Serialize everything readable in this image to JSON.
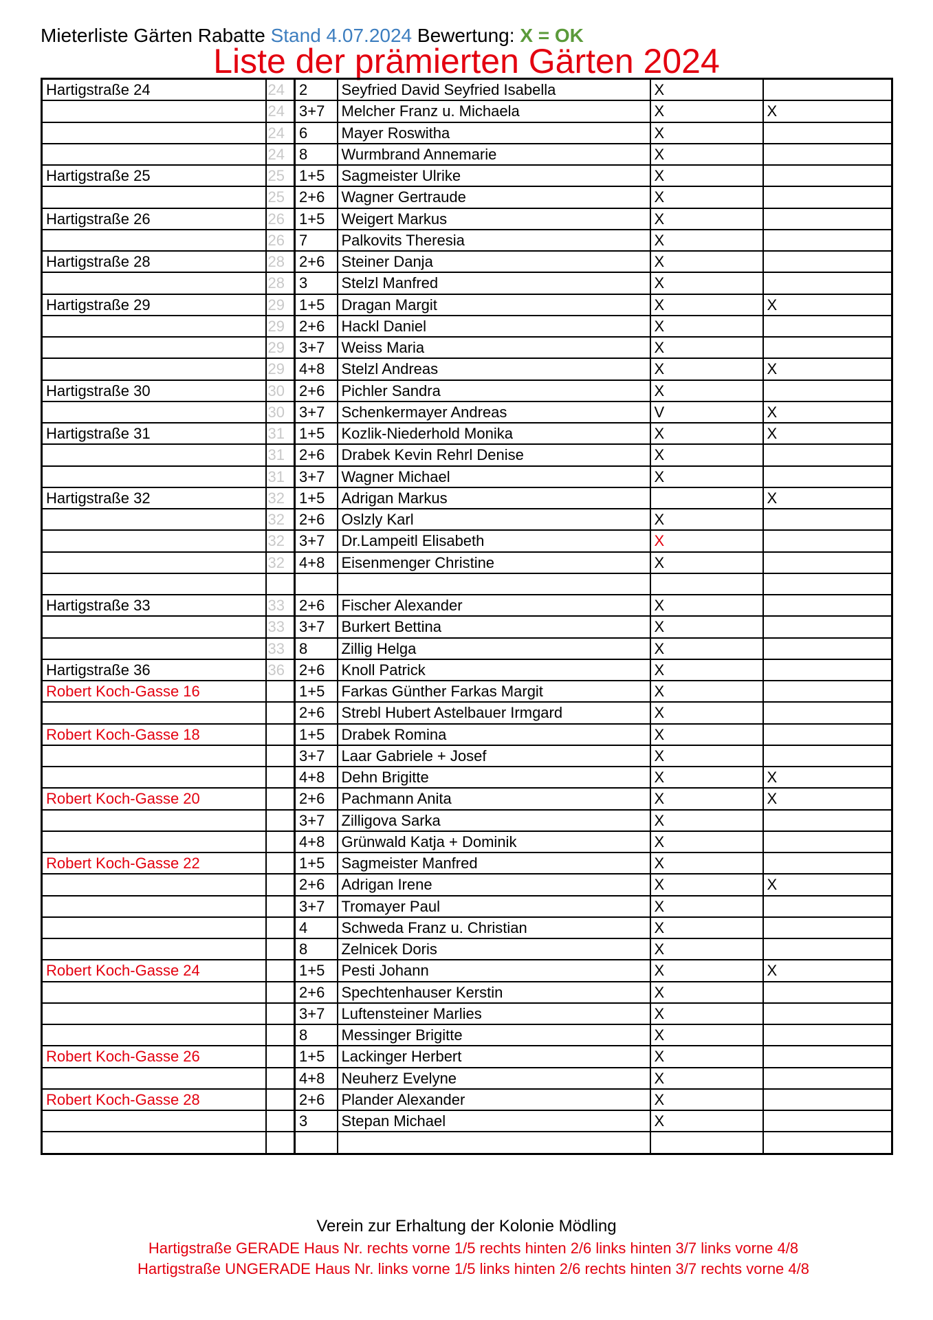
{
  "header": {
    "prefix": "Mieterliste Gärten Rabatte",
    "stand": "Stand 4.07.2024",
    "bewertung": "Bewertung:",
    "legend": "X = OK"
  },
  "title": "Liste der prämierten Gärten 2024",
  "colors": {
    "red": "#e3000f",
    "blue": "#3d7ebf",
    "green": "#5b9a3a",
    "grey": "#c8c8c8"
  },
  "rows": [
    {
      "street": "Hartigstraße 24",
      "num": "24",
      "unit": "2",
      "name": "Seyfried David Seyfried Isabella",
      "c1": "X",
      "c2": ""
    },
    {
      "street": "",
      "num": "24",
      "unit": "3+7",
      "name": "Melcher Franz u. Michaela",
      "c1": "X",
      "c2": "X"
    },
    {
      "street": "",
      "num": "24",
      "unit": "6",
      "name": "Mayer Roswitha",
      "c1": "X",
      "c2": ""
    },
    {
      "street": "",
      "num": "24",
      "unit": "8",
      "name": "Wurmbrand Annemarie",
      "c1": "X",
      "c2": ""
    },
    {
      "street": "Hartigstraße 25",
      "num": "25",
      "unit": "1+5",
      "name": "Sagmeister Ulrike",
      "c1": "X",
      "c2": ""
    },
    {
      "street": "",
      "num": "25",
      "unit": "2+6",
      "name": "Wagner Gertraude",
      "c1": "X",
      "c2": ""
    },
    {
      "street": "Hartigstraße 26",
      "num": "26",
      "unit": "1+5",
      "name": "Weigert Markus",
      "c1": "X",
      "c2": ""
    },
    {
      "street": "",
      "num": "26",
      "unit": "7",
      "name": "Palkovits Theresia",
      "c1": "X",
      "c2": ""
    },
    {
      "street": "Hartigstraße 28",
      "num": "28",
      "unit": "2+6",
      "name": "Steiner Danja",
      "c1": "X",
      "c2": ""
    },
    {
      "street": "",
      "num": "28",
      "unit": "3",
      "name": "Stelzl Manfred",
      "c1": "X",
      "c2": ""
    },
    {
      "street": "Hartigstraße 29",
      "num": "29",
      "unit": "1+5",
      "name": "Dragan Margit",
      "c1": "X",
      "c2": "X"
    },
    {
      "street": "",
      "num": "29",
      "unit": "2+6",
      "name": "Hackl Daniel",
      "c1": "X",
      "c2": ""
    },
    {
      "street": "",
      "num": "29",
      "unit": "3+7",
      "name": "Weiss Maria",
      "c1": "X",
      "c2": ""
    },
    {
      "street": "",
      "num": "29",
      "unit": "4+8",
      "name": "Stelzl Andreas",
      "c1": "X",
      "c2": "X"
    },
    {
      "street": "Hartigstraße 30",
      "num": "30",
      "unit": "2+6",
      "name": "Pichler Sandra",
      "c1": "X",
      "c2": ""
    },
    {
      "street": "",
      "num": "30",
      "unit": "3+7",
      "name": "Schenkermayer Andreas",
      "c1": "V",
      "c2": "X"
    },
    {
      "street": "Hartigstraße 31",
      "num": "31",
      "unit": "1+5",
      "name": "Kozlik-Niederhold Monika",
      "c1": "X",
      "c2": "X"
    },
    {
      "street": "",
      "num": "31",
      "unit": "2+6",
      "name": "Drabek Kevin Rehrl Denise",
      "c1": "X",
      "c2": ""
    },
    {
      "street": "",
      "num": "31",
      "unit": "3+7",
      "name": "Wagner Michael",
      "c1": "X",
      "c2": ""
    },
    {
      "street": "Hartigstraße 32",
      "num": "32",
      "unit": "1+5",
      "name": "Adrigan Markus",
      "c1": "",
      "c2": "X"
    },
    {
      "street": "",
      "num": "32",
      "unit": "2+6",
      "name": "Oslzly Karl",
      "c1": "X",
      "c2": ""
    },
    {
      "street": "",
      "num": "32",
      "unit": "3+7",
      "name": "Dr.Lampeitl Elisabeth",
      "c1": "X",
      "c2": "",
      "c1red": true
    },
    {
      "street": "",
      "num": "32",
      "unit": "4+8",
      "name": "Eisenmenger Christine",
      "c1": "X",
      "c2": ""
    },
    {
      "street": "",
      "num": "",
      "unit": "",
      "name": "",
      "c1": "",
      "c2": ""
    },
    {
      "street": "Hartigstraße 33",
      "num": "33",
      "unit": "2+6",
      "name": "Fischer Alexander",
      "c1": "X",
      "c2": ""
    },
    {
      "street": "",
      "num": "33",
      "unit": "3+7",
      "name": "Burkert Bettina",
      "c1": "X",
      "c2": ""
    },
    {
      "street": "",
      "num": "33",
      "unit": "8",
      "name": "Zillig Helga",
      "c1": "X",
      "c2": ""
    },
    {
      "street": "Hartigstraße 36",
      "num": "36",
      "unit": "2+6",
      "name": "Knoll Patrick",
      "c1": "X",
      "c2": ""
    },
    {
      "street": "Robert Koch-Gasse 16",
      "red": true,
      "num": "",
      "unit": "1+5",
      "name": "Farkas Günther Farkas Margit",
      "c1": "X",
      "c2": ""
    },
    {
      "street": "",
      "num": "",
      "unit": "2+6",
      "name": "Strebl Hubert Astelbauer Irmgard",
      "c1": "X",
      "c2": ""
    },
    {
      "street": "Robert Koch-Gasse 18",
      "red": true,
      "num": "",
      "unit": "1+5",
      "name": "Drabek Romina",
      "c1": "X",
      "c2": ""
    },
    {
      "street": "",
      "num": "",
      "unit": "3+7",
      "name": "Laar Gabriele + Josef",
      "c1": "X",
      "c2": ""
    },
    {
      "street": "",
      "num": "",
      "unit": "4+8",
      "name": "Dehn Brigitte",
      "c1": "X",
      "c2": "X"
    },
    {
      "street": "Robert Koch-Gasse 20",
      "red": true,
      "num": "",
      "unit": "2+6",
      "name": "Pachmann Anita",
      "c1": "X",
      "c2": "X"
    },
    {
      "street": "",
      "num": "",
      "unit": "3+7",
      "name": "Zilligova Sarka",
      "c1": "X",
      "c2": ""
    },
    {
      "street": "",
      "num": "",
      "unit": "4+8",
      "name": "Grünwald Katja + Dominik",
      "c1": "X",
      "c2": ""
    },
    {
      "street": "Robert Koch-Gasse 22",
      "red": true,
      "num": "",
      "unit": "1+5",
      "name": "Sagmeister Manfred",
      "c1": "X",
      "c2": ""
    },
    {
      "street": "",
      "num": "",
      "unit": "2+6",
      "name": "Adrigan Irene",
      "c1": "X",
      "c2": "X"
    },
    {
      "street": "",
      "num": "",
      "unit": "3+7",
      "name": "Tromayer Paul",
      "c1": "X",
      "c2": ""
    },
    {
      "street": "",
      "num": "",
      "unit": "4",
      "name": "Schweda Franz u. Christian",
      "c1": "X",
      "c2": ""
    },
    {
      "street": "",
      "num": "",
      "unit": "8",
      "name": "Zelnicek Doris",
      "c1": "X",
      "c2": ""
    },
    {
      "street": "Robert Koch-Gasse 24",
      "red": true,
      "num": "",
      "unit": "1+5",
      "name": "Pesti Johann",
      "c1": "X",
      "c2": "X"
    },
    {
      "street": "",
      "num": "",
      "unit": "2+6",
      "name": "Spechtenhauser Kerstin",
      "c1": "X",
      "c2": ""
    },
    {
      "street": "",
      "num": "",
      "unit": "3+7",
      "name": "Luftensteiner Marlies",
      "c1": "X",
      "c2": ""
    },
    {
      "street": "",
      "num": "",
      "unit": "8",
      "name": "Messinger Brigitte",
      "c1": "X",
      "c2": ""
    },
    {
      "street": "Robert Koch-Gasse 26",
      "red": true,
      "num": "",
      "unit": "1+5",
      "name": "Lackinger Herbert",
      "c1": "X",
      "c2": ""
    },
    {
      "street": "",
      "num": "",
      "unit": "4+8",
      "name": "Neuherz Evelyne",
      "c1": "X",
      "c2": ""
    },
    {
      "street": "Robert Koch-Gasse 28",
      "red": true,
      "num": "",
      "unit": "2+6",
      "name": "Plander Alexander",
      "c1": "X",
      "c2": ""
    },
    {
      "street": "",
      "num": "",
      "unit": "3",
      "name": "Stepan Michael",
      "c1": "X",
      "c2": ""
    },
    {
      "street": "",
      "num": "",
      "unit": "",
      "name": "",
      "c1": "",
      "c2": ""
    }
  ],
  "footer": {
    "org": "Verein zur Erhaltung der Kolonie Mödling",
    "line_gerade": "Hartigstraße GERADE Haus Nr. rechts vorne 1/5 rechts hinten 2/6 links hinten 3/7 links vorne 4/8",
    "line_ungerade": "Hartigstraße UNGERADE Haus Nr. links vorne 1/5 links hinten 2/6 rechts hinten 3/7 rechts vorne 4/8"
  }
}
